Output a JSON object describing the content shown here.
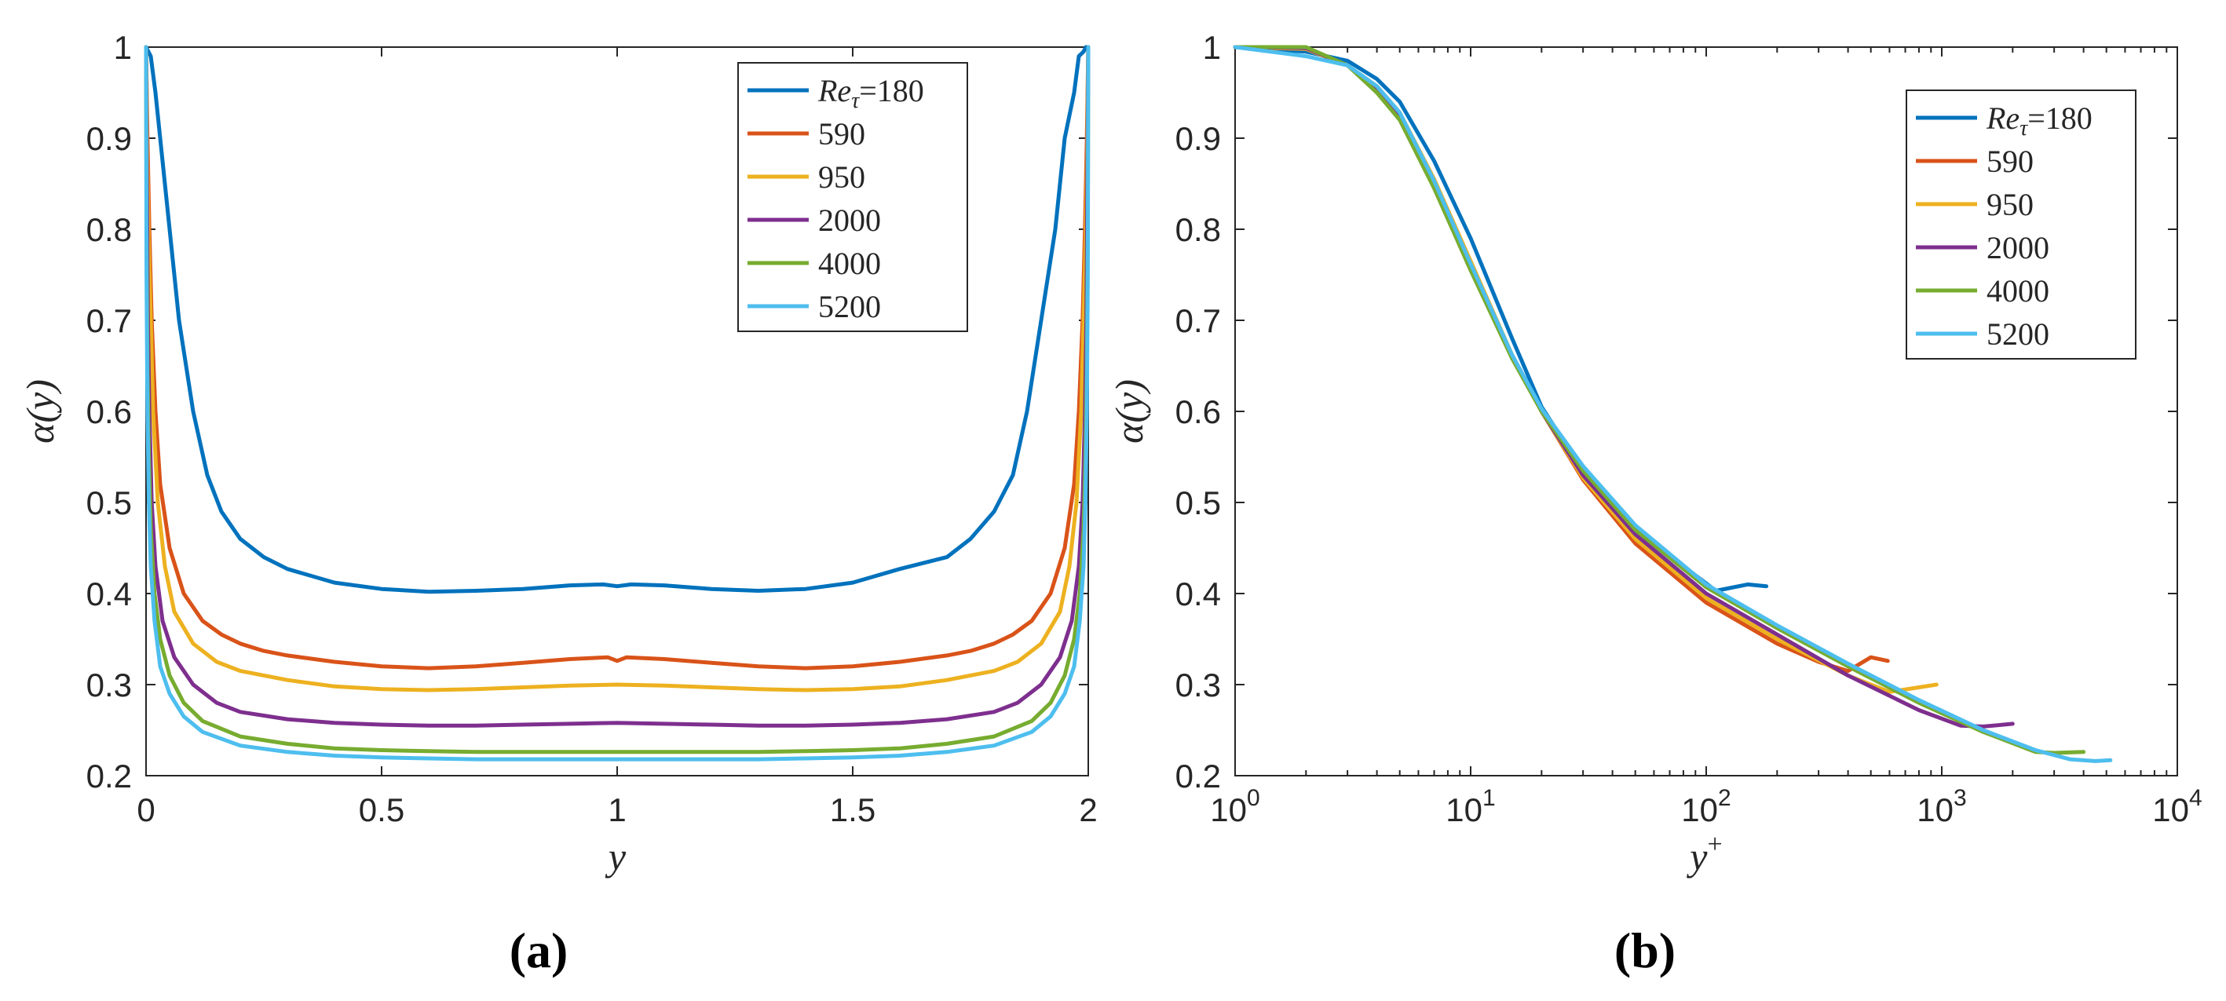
{
  "chart_data": [
    {
      "type": "line",
      "panel_label": "(a)",
      "xlabel": "y",
      "ylabel": "α(y)",
      "xlim": [
        0,
        2
      ],
      "ylim": [
        0.2,
        1
      ],
      "xscale": "linear",
      "xticks": [
        0,
        0.5,
        1,
        1.5,
        2
      ],
      "xtick_labels": [
        "0",
        "0.5",
        "1",
        "1.5",
        "2"
      ],
      "yticks": [
        0.2,
        0.3,
        0.4,
        0.5,
        0.6,
        0.7,
        0.8,
        0.9,
        1
      ],
      "ytick_labels": [
        "0.2",
        "0.3",
        "0.4",
        "0.5",
        "0.6",
        "0.7",
        "0.8",
        "0.9",
        "1"
      ],
      "legend_position": "top-right",
      "series": [
        {
          "name": "180",
          "legend_label": "Reτ=180",
          "color": "#0072BD",
          "x": [
            0,
            0.005,
            0.01,
            0.02,
            0.03,
            0.05,
            0.07,
            0.1,
            0.13,
            0.16,
            0.2,
            0.25,
            0.3,
            0.4,
            0.5,
            0.6,
            0.7,
            0.8,
            0.9,
            0.97,
            1.0,
            1.03,
            1.1,
            1.2,
            1.3,
            1.4,
            1.5,
            1.6,
            1.7,
            1.75,
            1.8,
            1.84,
            1.87,
            1.9,
            1.93,
            1.95,
            1.97,
            1.98,
            1.99,
            1.995,
            2.0
          ],
          "y": [
            1.0,
            0.995,
            0.99,
            0.95,
            0.9,
            0.8,
            0.7,
            0.6,
            0.53,
            0.49,
            0.46,
            0.44,
            0.427,
            0.412,
            0.405,
            0.402,
            0.403,
            0.405,
            0.409,
            0.41,
            0.408,
            0.41,
            0.409,
            0.405,
            0.403,
            0.405,
            0.412,
            0.427,
            0.44,
            0.46,
            0.49,
            0.53,
            0.6,
            0.7,
            0.8,
            0.9,
            0.95,
            0.99,
            0.995,
            1.0,
            1.0
          ]
        },
        {
          "name": "590",
          "legend_label": "590",
          "color": "#D95319",
          "x": [
            0,
            0.003,
            0.007,
            0.012,
            0.02,
            0.03,
            0.05,
            0.08,
            0.12,
            0.16,
            0.2,
            0.25,
            0.3,
            0.4,
            0.5,
            0.6,
            0.7,
            0.8,
            0.9,
            0.98,
            1.0,
            1.02,
            1.1,
            1.2,
            1.3,
            1.4,
            1.5,
            1.6,
            1.7,
            1.75,
            1.8,
            1.84,
            1.88,
            1.92,
            1.95,
            1.97,
            1.98,
            1.988,
            1.993,
            1.997,
            2.0
          ],
          "y": [
            1.0,
            0.9,
            0.8,
            0.7,
            0.6,
            0.52,
            0.45,
            0.4,
            0.37,
            0.355,
            0.345,
            0.337,
            0.332,
            0.325,
            0.32,
            0.318,
            0.32,
            0.324,
            0.328,
            0.33,
            0.326,
            0.33,
            0.328,
            0.324,
            0.32,
            0.318,
            0.32,
            0.325,
            0.332,
            0.337,
            0.345,
            0.355,
            0.37,
            0.4,
            0.45,
            0.52,
            0.6,
            0.7,
            0.8,
            0.9,
            1.0
          ]
        },
        {
          "name": "950",
          "legend_label": "950",
          "color": "#EDB120",
          "x": [
            0,
            0.002,
            0.005,
            0.01,
            0.015,
            0.025,
            0.04,
            0.06,
            0.1,
            0.15,
            0.2,
            0.3,
            0.4,
            0.5,
            0.6,
            0.7,
            0.8,
            0.9,
            1.0,
            1.1,
            1.2,
            1.3,
            1.4,
            1.5,
            1.6,
            1.7,
            1.8,
            1.85,
            1.9,
            1.94,
            1.96,
            1.975,
            1.985,
            1.99,
            1.995,
            1.998,
            2.0
          ],
          "y": [
            1.0,
            0.9,
            0.8,
            0.7,
            0.6,
            0.5,
            0.43,
            0.38,
            0.345,
            0.325,
            0.315,
            0.305,
            0.298,
            0.295,
            0.294,
            0.295,
            0.297,
            0.299,
            0.3,
            0.299,
            0.297,
            0.295,
            0.294,
            0.295,
            0.298,
            0.305,
            0.315,
            0.325,
            0.345,
            0.38,
            0.43,
            0.5,
            0.6,
            0.7,
            0.8,
            0.9,
            1.0
          ]
        },
        {
          "name": "2000",
          "legend_label": "2000",
          "color": "#7E2F8E",
          "x": [
            0,
            0.002,
            0.004,
            0.007,
            0.012,
            0.02,
            0.035,
            0.06,
            0.1,
            0.15,
            0.2,
            0.3,
            0.4,
            0.5,
            0.6,
            0.7,
            0.8,
            0.9,
            1.0,
            1.1,
            1.2,
            1.3,
            1.4,
            1.5,
            1.6,
            1.7,
            1.8,
            1.85,
            1.9,
            1.94,
            1.965,
            1.98,
            1.988,
            1.993,
            1.996,
            1.998,
            2.0
          ],
          "y": [
            1.0,
            0.85,
            0.7,
            0.6,
            0.5,
            0.43,
            0.37,
            0.33,
            0.3,
            0.28,
            0.27,
            0.262,
            0.258,
            0.256,
            0.255,
            0.255,
            0.256,
            0.257,
            0.258,
            0.257,
            0.256,
            0.255,
            0.255,
            0.256,
            0.258,
            0.262,
            0.27,
            0.28,
            0.3,
            0.33,
            0.37,
            0.43,
            0.5,
            0.6,
            0.7,
            0.85,
            1.0
          ]
        },
        {
          "name": "4000",
          "legend_label": "4000",
          "color": "#77AC30",
          "x": [
            0,
            0.001,
            0.003,
            0.006,
            0.01,
            0.018,
            0.03,
            0.05,
            0.08,
            0.12,
            0.2,
            0.3,
            0.4,
            0.5,
            0.6,
            0.7,
            0.8,
            0.9,
            1.0,
            1.1,
            1.2,
            1.3,
            1.4,
            1.5,
            1.6,
            1.7,
            1.8,
            1.88,
            1.92,
            1.95,
            1.97,
            1.982,
            1.99,
            1.994,
            1.997,
            1.999,
            2.0
          ],
          "y": [
            1.0,
            0.8,
            0.65,
            0.55,
            0.47,
            0.4,
            0.35,
            0.31,
            0.28,
            0.26,
            0.243,
            0.235,
            0.23,
            0.228,
            0.227,
            0.226,
            0.226,
            0.226,
            0.226,
            0.226,
            0.226,
            0.226,
            0.227,
            0.228,
            0.23,
            0.235,
            0.243,
            0.26,
            0.28,
            0.31,
            0.35,
            0.4,
            0.47,
            0.55,
            0.65,
            0.8,
            1.0
          ]
        },
        {
          "name": "5200",
          "legend_label": "5200",
          "color": "#4DBEEE",
          "x": [
            0,
            0.001,
            0.003,
            0.006,
            0.01,
            0.018,
            0.03,
            0.05,
            0.08,
            0.12,
            0.2,
            0.3,
            0.4,
            0.5,
            0.6,
            0.7,
            0.8,
            0.9,
            1.0,
            1.1,
            1.2,
            1.3,
            1.4,
            1.5,
            1.6,
            1.7,
            1.8,
            1.88,
            1.92,
            1.95,
            1.97,
            1.982,
            1.99,
            1.994,
            1.997,
            1.999,
            2.0
          ],
          "y": [
            1.0,
            0.75,
            0.6,
            0.5,
            0.43,
            0.37,
            0.32,
            0.29,
            0.265,
            0.248,
            0.233,
            0.226,
            0.222,
            0.22,
            0.219,
            0.218,
            0.218,
            0.218,
            0.218,
            0.218,
            0.218,
            0.218,
            0.219,
            0.22,
            0.222,
            0.226,
            0.233,
            0.248,
            0.265,
            0.29,
            0.32,
            0.37,
            0.43,
            0.5,
            0.6,
            0.75,
            1.0
          ]
        }
      ]
    },
    {
      "type": "line",
      "panel_label": "(b)",
      "xlabel": "y+",
      "ylabel": "α(y)",
      "xlim": [
        1,
        10000
      ],
      "ylim": [
        0.2,
        1
      ],
      "xscale": "log",
      "xticks": [
        1,
        10,
        100,
        1000,
        10000
      ],
      "xtick_labels": [
        {
          "base": "10",
          "exp": "0"
        },
        {
          "base": "10",
          "exp": "1"
        },
        {
          "base": "10",
          "exp": "2"
        },
        {
          "base": "10",
          "exp": "3"
        },
        {
          "base": "10",
          "exp": "4"
        }
      ],
      "yticks": [
        0.2,
        0.3,
        0.4,
        0.5,
        0.6,
        0.7,
        0.8,
        0.9,
        1
      ],
      "ytick_labels": [
        "0.2",
        "0.3",
        "0.4",
        "0.5",
        "0.6",
        "0.7",
        "0.8",
        "0.9",
        "1"
      ],
      "legend_position": "top-right",
      "series": [
        {
          "name": "180",
          "legend_label": "Reτ=180",
          "color": "#0072BD",
          "x": [
            1,
            2,
            3,
            4,
            5,
            7,
            10,
            15,
            20,
            30,
            50,
            80,
            110,
            150,
            180
          ],
          "y": [
            1.0,
            0.995,
            0.985,
            0.965,
            0.94,
            0.875,
            0.79,
            0.68,
            0.605,
            0.535,
            0.47,
            0.43,
            0.403,
            0.41,
            0.408
          ]
        },
        {
          "name": "590",
          "legend_label": "590",
          "color": "#D95319",
          "x": [
            1,
            2,
            3,
            4,
            5,
            7,
            10,
            15,
            20,
            30,
            50,
            100,
            200,
            300,
            400,
            500,
            590
          ],
          "y": [
            1.0,
            0.998,
            0.98,
            0.955,
            0.925,
            0.85,
            0.76,
            0.66,
            0.6,
            0.525,
            0.455,
            0.39,
            0.345,
            0.325,
            0.315,
            0.33,
            0.326
          ]
        },
        {
          "name": "950",
          "legend_label": "950",
          "color": "#EDB120",
          "x": [
            1,
            2,
            3,
            4,
            5,
            7,
            10,
            15,
            20,
            30,
            50,
            100,
            200,
            400,
            600,
            800,
            950
          ],
          "y": [
            1.0,
            0.998,
            0.98,
            0.957,
            0.928,
            0.855,
            0.765,
            0.662,
            0.6,
            0.527,
            0.46,
            0.395,
            0.35,
            0.31,
            0.292,
            0.297,
            0.3
          ]
        },
        {
          "name": "2000",
          "legend_label": "2000",
          "color": "#7E2F8E",
          "x": [
            1,
            2,
            3,
            4,
            5,
            7,
            10,
            15,
            20,
            30,
            50,
            100,
            200,
            400,
            800,
            1200,
            1500,
            2000
          ],
          "y": [
            1.0,
            0.999,
            0.98,
            0.955,
            0.925,
            0.85,
            0.76,
            0.66,
            0.6,
            0.53,
            0.465,
            0.4,
            0.355,
            0.31,
            0.272,
            0.255,
            0.254,
            0.257
          ]
        },
        {
          "name": "4000",
          "legend_label": "4000",
          "color": "#77AC30",
          "x": [
            1,
            2,
            3,
            4,
            5,
            7,
            10,
            15,
            20,
            30,
            50,
            100,
            200,
            400,
            800,
            1500,
            2500,
            3000,
            4000
          ],
          "y": [
            1.0,
            1.0,
            0.98,
            0.95,
            0.92,
            0.845,
            0.755,
            0.658,
            0.6,
            0.535,
            0.47,
            0.407,
            0.362,
            0.32,
            0.28,
            0.248,
            0.226,
            0.225,
            0.226
          ]
        },
        {
          "name": "5200",
          "legend_label": "5200",
          "color": "#4DBEEE",
          "x": [
            1,
            2,
            3,
            4,
            5,
            7,
            10,
            15,
            20,
            30,
            50,
            100,
            200,
            400,
            800,
            1500,
            2500,
            3500,
            4500,
            5200
          ],
          "y": [
            1.0,
            0.99,
            0.98,
            0.957,
            0.928,
            0.853,
            0.762,
            0.662,
            0.603,
            0.54,
            0.475,
            0.41,
            0.365,
            0.323,
            0.283,
            0.25,
            0.228,
            0.218,
            0.216,
            0.217
          ]
        }
      ]
    }
  ]
}
